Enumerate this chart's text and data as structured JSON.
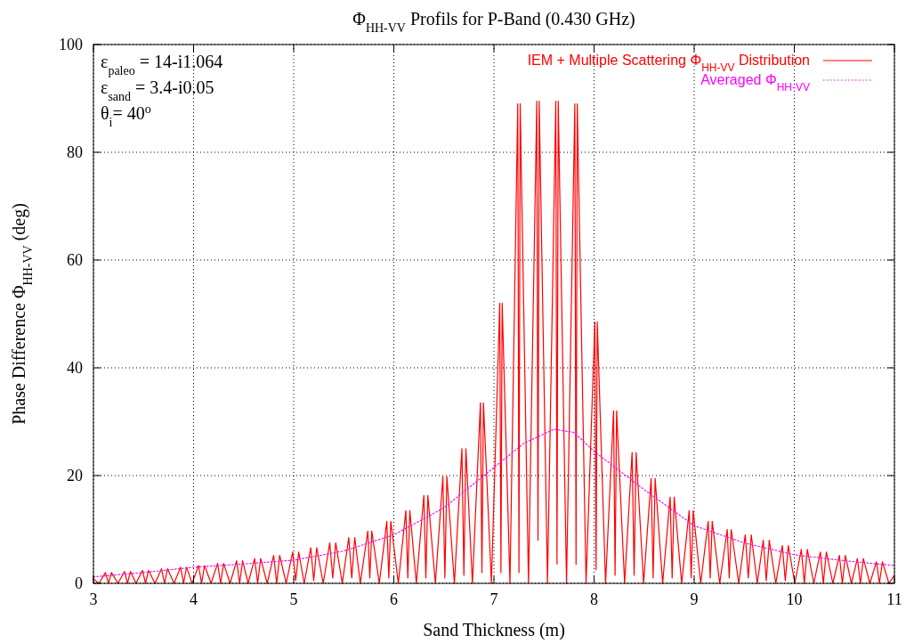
{
  "chart_data": {
    "type": "line",
    "title": "Φ$_{HH-VV}$ Profils for P-Band (0.430 GHz)",
    "xlabel": "Sand Thickness (m)",
    "ylabel": "Phase Difference Φ$_{HH-VV}$ (deg)",
    "xlim": [
      3,
      11
    ],
    "xticks": [
      3,
      4,
      5,
      6,
      7,
      8,
      9,
      10,
      11
    ],
    "ylim": [
      0,
      100
    ],
    "yticks": [
      0,
      20,
      40,
      60,
      80,
      100
    ],
    "grid": true,
    "legend": "top right",
    "annotations": [
      "ε$_{paleo}$ = 14-i1.064",
      "ε$_{sand}$ = 3.4-i0.05",
      "θ$_{i}$= 40$^{o}$"
    ],
    "series": [
      {
        "name": "IEM + Multiple Scattering Φ$_{HH-VV}$ Distribution",
        "color": "#ff0000",
        "line_style": "solid",
        "x": [
          3,
          3.055,
          3.12,
          3.15,
          3.18,
          3.245,
          3.31,
          3.34,
          3.37,
          3.425,
          3.49,
          3.52,
          3.55,
          3.615,
          3.68,
          3.71,
          3.74,
          3.805,
          3.87,
          3.9,
          3.93,
          3.985,
          4.05,
          4.08,
          4.11,
          4.175,
          4.24,
          4.27,
          4.3,
          4.365,
          4.43,
          4.46,
          4.49,
          4.545,
          4.61,
          4.64,
          4.67,
          4.735,
          4.8,
          4.83,
          4.86,
          4.925,
          4.99,
          5.02,
          5.05,
          5.105,
          5.17,
          5.2,
          5.23,
          5.295,
          5.36,
          5.39,
          5.42,
          5.485,
          5.55,
          5.58,
          5.61,
          5.665,
          5.74,
          5.76,
          5.78,
          5.855,
          5.93,
          5.95,
          5.97,
          6.045,
          6.12,
          6.14,
          6.16,
          6.225,
          6.3,
          6.32,
          6.34,
          6.415,
          6.49,
          6.51,
          6.53,
          6.605,
          6.68,
          6.7,
          6.72,
          6.785,
          6.865,
          6.88,
          6.895,
          6.975,
          7.058,
          7.07,
          7.082,
          7.16,
          7.238,
          7.25,
          7.262,
          7.345,
          7.428,
          7.44,
          7.452,
          7.535,
          7.618,
          7.63,
          7.642,
          7.725,
          7.808,
          7.82,
          7.832,
          7.92,
          8.008,
          8.02,
          8.032,
          8.115,
          8.195,
          8.21,
          8.225,
          8.305,
          8.38,
          8.4,
          8.42,
          8.495,
          8.57,
          8.59,
          8.61,
          8.685,
          8.76,
          8.78,
          8.8,
          8.875,
          8.95,
          8.97,
          8.99,
          9.065,
          9.14,
          9.16,
          9.18,
          9.255,
          9.33,
          9.35,
          9.37,
          9.445,
          9.51,
          9.54,
          9.57,
          9.63,
          9.69,
          9.72,
          9.75,
          9.815,
          9.88,
          9.91,
          9.94,
          10.005,
          10.07,
          10.1,
          10.13,
          10.195,
          10.26,
          10.29,
          10.32,
          10.385,
          10.45,
          10.48,
          10.51,
          10.57,
          10.63,
          10.66,
          10.69,
          10.755,
          10.82,
          10.85,
          10.88,
          10.945,
          11
        ],
        "values": [
          0.8,
          0,
          2,
          0,
          2,
          0,
          2.2,
          0,
          2.2,
          0,
          2.4,
          0,
          2.4,
          0,
          2.7,
          0,
          2.7,
          0,
          3,
          0,
          3,
          0,
          3.3,
          0,
          3.3,
          0,
          3.7,
          0,
          3.7,
          0,
          4.2,
          0,
          4.2,
          0,
          4.6,
          0,
          4.6,
          0,
          5.2,
          0,
          5.2,
          0,
          5.8,
          0.5,
          5.8,
          0,
          6.6,
          0.5,
          6.6,
          0,
          7.5,
          1,
          7.5,
          0,
          8.5,
          1,
          8.5,
          0,
          9.7,
          1,
          9.7,
          0,
          11.5,
          1,
          11.5,
          0,
          13.5,
          1,
          13.5,
          0,
          16.3,
          1,
          16.3,
          0,
          19.8,
          1,
          19.8,
          0,
          25,
          1.5,
          25,
          0,
          33.5,
          2,
          33.5,
          0,
          52,
          2,
          52,
          0,
          89,
          2,
          89,
          0,
          89.5,
          8,
          89.5,
          0,
          89.5,
          3.6,
          89.5,
          0,
          89,
          3.5,
          89,
          0,
          48.5,
          2.5,
          48.5,
          0,
          32,
          1.5,
          32,
          0,
          24.3,
          1.5,
          24.3,
          0,
          19.5,
          1,
          19.5,
          0,
          16,
          1,
          16,
          0,
          13.5,
          1,
          13.5,
          0,
          11.5,
          1,
          11.5,
          0,
          10,
          1,
          10,
          0,
          9,
          1,
          9,
          0,
          8,
          0.5,
          8,
          0,
          7,
          0.5,
          7,
          0,
          6.3,
          0,
          6.3,
          0,
          5.8,
          0,
          5.8,
          0,
          5.2,
          0,
          5.2,
          0,
          4.6,
          0,
          4.6,
          0,
          4,
          0,
          4,
          0,
          1.5
        ]
      },
      {
        "name": "Averaged Φ$_{HH-VV}$",
        "color": "#ff00ff",
        "line_style": "dotted",
        "x": [
          3,
          3.5,
          4,
          4.5,
          5,
          5.5,
          6,
          6.5,
          7,
          7.3,
          7.6,
          7.8,
          8,
          8.5,
          9,
          9.5,
          10,
          10.5,
          11
        ],
        "values": [
          1.2,
          2,
          3,
          3.6,
          4.3,
          6,
          9,
          14,
          21.5,
          26,
          28.6,
          28,
          24.5,
          17.4,
          10.7,
          7.5,
          5.3,
          4.2,
          3.3
        ]
      }
    ]
  }
}
